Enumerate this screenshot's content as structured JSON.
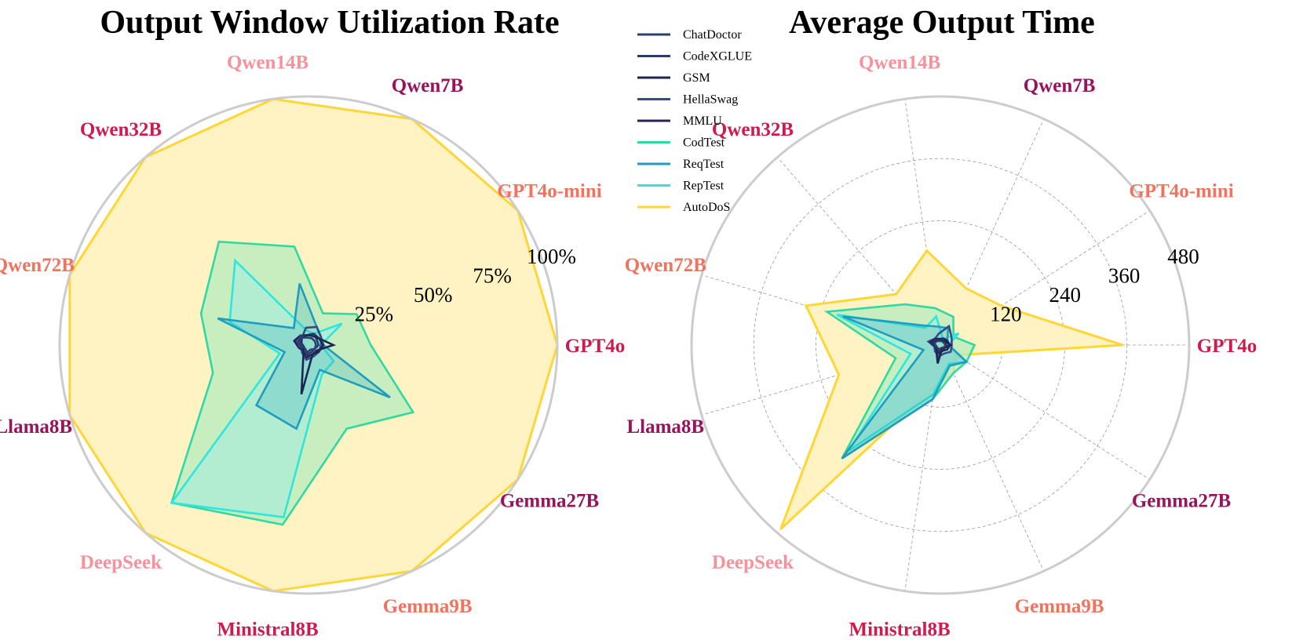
{
  "chart_data": [
    {
      "type": "radar",
      "title": "Output Window Utilization Rate",
      "categories": [
        "GPT4o",
        "GPT4o-mini",
        "Qwen7B",
        "Qwen14B",
        "Qwen32B",
        "Qwen72B",
        "Llama8B",
        "DeepSeek",
        "Ministral8B",
        "Gemma9B",
        "Gemma27B"
      ],
      "category_colors": [
        "#d01a4e",
        "#f2725e",
        "#98135c",
        "#f7929c",
        "#d01a4e",
        "#f2725e",
        "#98135c",
        "#f7929c",
        "#d01a4e",
        "#f2725e",
        "#98135c"
      ],
      "rlim": [
        0,
        100
      ],
      "ticks": [
        25,
        50,
        75,
        100
      ],
      "tick_labels": [
        "25%",
        "50%",
        "75%",
        "100%"
      ],
      "series": [
        {
          "name": "ChatDoctor",
          "values": [
            3,
            3,
            3,
            3,
            4,
            4,
            2,
            2,
            3,
            2,
            3
          ]
        },
        {
          "name": "CodeXGLUE",
          "values": [
            4,
            4,
            5,
            4,
            5,
            4,
            3,
            3,
            4,
            3,
            3
          ]
        },
        {
          "name": "GSM",
          "values": [
            10,
            5,
            4,
            4,
            4,
            3,
            2,
            3,
            20,
            4,
            4
          ]
        },
        {
          "name": "HellaSwag",
          "values": [
            5,
            6,
            8,
            7,
            4,
            5,
            3,
            4,
            6,
            5,
            5
          ]
        },
        {
          "name": "MMLU",
          "values": [
            6,
            5,
            5,
            4,
            5,
            6,
            4,
            3,
            5,
            4,
            5
          ]
        },
        {
          "name": "CodTest",
          "values": [
            25,
            23,
            14,
            40,
            55,
            45,
            40,
            84,
            73,
            37,
            50
          ]
        },
        {
          "name": "ReqTest",
          "values": [
            6,
            6,
            8,
            25,
            9,
            38,
            10,
            32,
            34,
            11,
            39
          ]
        },
        {
          "name": "RepTest",
          "values": [
            5,
            16,
            5,
            6,
            45,
            33,
            12,
            84,
            70,
            13,
            12
          ]
        },
        {
          "name": "AutoDoS",
          "values": [
            100,
            100,
            100,
            100,
            100,
            100,
            100,
            100,
            100,
            100,
            100
          ]
        }
      ]
    },
    {
      "type": "radar",
      "title": "Average Output Time",
      "categories": [
        "GPT4o",
        "GPT4o-mini",
        "Qwen7B",
        "Qwen14B",
        "Qwen32B",
        "Qwen72B",
        "Llama8B",
        "DeepSeek",
        "Ministral8B",
        "Gemma9B",
        "Gemma27B"
      ],
      "category_colors": [
        "#d01a4e",
        "#f2725e",
        "#98135c",
        "#f7929c",
        "#d01a4e",
        "#f2725e",
        "#98135c",
        "#f7929c",
        "#d01a4e",
        "#f2725e",
        "#98135c"
      ],
      "rlim": [
        0,
        480
      ],
      "ticks": [
        120,
        240,
        360,
        480
      ],
      "tick_labels": [
        "120",
        "240",
        "360",
        "480"
      ],
      "series": [
        {
          "name": "ChatDoctor",
          "values": [
            10,
            8,
            8,
            8,
            10,
            12,
            8,
            8,
            8,
            6,
            8
          ]
        },
        {
          "name": "CodeXGLUE",
          "values": [
            12,
            10,
            12,
            10,
            14,
            16,
            10,
            10,
            12,
            8,
            10
          ]
        },
        {
          "name": "GSM",
          "values": [
            20,
            12,
            10,
            10,
            12,
            14,
            8,
            12,
            36,
            8,
            10
          ]
        },
        {
          "name": "HellaSwag",
          "values": [
            22,
            26,
            40,
            22,
            16,
            24,
            12,
            16,
            22,
            18,
            24
          ]
        },
        {
          "name": "MMLU",
          "values": [
            18,
            16,
            14,
            12,
            16,
            20,
            10,
            12,
            16,
            12,
            16
          ]
        },
        {
          "name": "CodTest",
          "values": [
            66,
            30,
            60,
            72,
            104,
            228,
            90,
            290,
            106,
            60,
            60
          ]
        },
        {
          "name": "ReqTest",
          "values": [
            16,
            16,
            36,
            36,
            50,
            196,
            34,
            290,
            106,
            44,
            60
          ]
        },
        {
          "name": "RepTest",
          "values": [
            16,
            42,
            12,
            56,
            44,
            208,
            60,
            270,
            96,
            40,
            60
          ]
        },
        {
          "name": "AutoDoS",
          "values": [
            352,
            140,
            120,
            184,
            130,
            270,
            204,
            470,
            80,
            60,
            36
          ]
        }
      ]
    }
  ],
  "legend": {
    "entries": [
      "ChatDoctor",
      "CodeXGLUE",
      "GSM",
      "HellaSwag",
      "MMLU",
      "CodTest",
      "ReqTest",
      "RepTest",
      "AutoDoS"
    ],
    "colors": [
      "#2f3e6f",
      "#283b6e",
      "#1c2650",
      "#354b85",
      "#252456",
      "#2fdaa2",
      "#1f9dbf",
      "#2ee6dd",
      "#ffd636"
    ]
  },
  "colors": {
    "autodos_fill": "#fff2c3",
    "codtest_fill": "#b5ecbd",
    "reptest_fill": "#a3ece0",
    "grid": "#999999",
    "frame": "#cccccc"
  }
}
